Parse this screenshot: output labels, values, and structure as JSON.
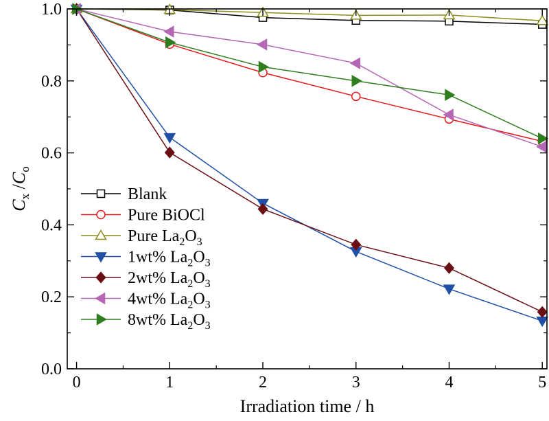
{
  "chart_data": {
    "type": "line",
    "xlabel": "Irradiation time / h",
    "ylabel": {
      "main1": "C",
      "sub1": "x",
      "slash": " /",
      "main2": "C",
      "sub2": "o"
    },
    "xlim": [
      -0.1,
      5.05
    ],
    "ylim": [
      0.0,
      1.0
    ],
    "xticks": [
      "0",
      "1",
      "2",
      "3",
      "4",
      "5"
    ],
    "yticks": [
      "0.0",
      "0.2",
      "0.4",
      "0.6",
      "0.8",
      "1.0"
    ],
    "x": [
      0,
      1,
      2,
      3,
      4,
      5
    ],
    "grid": false,
    "legend_position": "lower-left",
    "series": [
      {
        "name": "Blank",
        "label_main": "Blank",
        "label_sub": "",
        "label_tail": "",
        "color": "#000000",
        "marker": "square-open",
        "values": [
          1.0,
          0.997,
          0.976,
          0.968,
          0.966,
          0.957
        ]
      },
      {
        "name": "Pure BiOCl",
        "label_main": "Pure BiOCl",
        "label_sub": "",
        "label_tail": "",
        "color": "#e41a1c",
        "marker": "circle-open",
        "values": [
          1.0,
          0.902,
          0.823,
          0.757,
          0.694,
          0.632
        ]
      },
      {
        "name": "Pure La2O3",
        "label_main": "Pure La",
        "label_sub": "2",
        "label_tail": "O",
        "label_sub2": "3",
        "color": "#8c8c1e",
        "marker": "triangle-up-open",
        "values": [
          1.0,
          0.998,
          0.99,
          0.982,
          0.983,
          0.967
        ]
      },
      {
        "name": "1wt% La2O3",
        "label_main": "1wt% La",
        "label_sub": "2",
        "label_tail": "O",
        "label_sub2": "3",
        "color": "#1f4fa6",
        "marker": "triangle-down-filled",
        "values": [
          1.0,
          0.643,
          0.46,
          0.326,
          0.222,
          0.133
        ]
      },
      {
        "name": "2wt% La2O3",
        "label_main": "2wt% La",
        "label_sub": "2",
        "label_tail": "O",
        "label_sub2": "3",
        "color": "#6b0f14",
        "marker": "diamond-filled",
        "values": [
          1.0,
          0.601,
          0.444,
          0.345,
          0.28,
          0.158
        ]
      },
      {
        "name": "4wt% La2O3",
        "label_main": "4wt% La",
        "label_sub": "2",
        "label_tail": "O",
        "label_sub2": "3",
        "color": "#b567b5",
        "marker": "triangle-left-filled",
        "values": [
          1.0,
          0.937,
          0.901,
          0.849,
          0.706,
          0.617
        ]
      },
      {
        "name": "8wt% La2O3",
        "label_main": "8wt% La",
        "label_sub": "2",
        "label_tail": "O",
        "label_sub2": "3",
        "color": "#2e7d1e",
        "marker": "triangle-right-filled",
        "values": [
          1.0,
          0.907,
          0.839,
          0.8,
          0.761,
          0.64
        ]
      }
    ]
  }
}
